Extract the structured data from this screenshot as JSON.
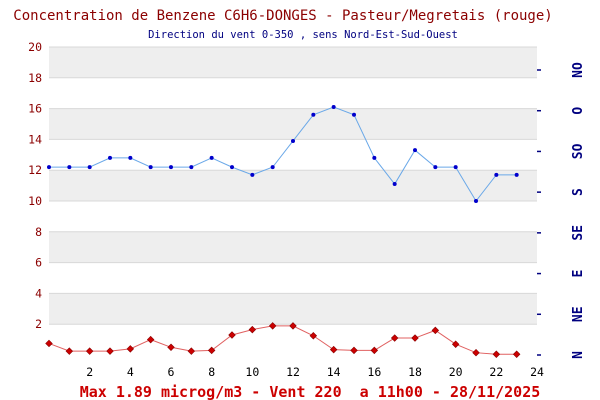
{
  "colors": {
    "title": "#8b0000",
    "left_ticks": "#8b0000",
    "right_ticks": "#000080",
    "footer": "#cc0000",
    "wind_series": "#6aa8e8",
    "wind_marker": "#0000cc",
    "benzene_series": "#e06060",
    "benzene_marker": "#cc0000",
    "band": "#eeeeee",
    "grid": "#d8d8d8"
  },
  "chart_data": {
    "type": "line",
    "title": "Concentration de Benzene C6H6-DONGES - Pasteur/Megretais (rouge)",
    "subtitle": "Direction du vent 0-350 , sens Nord-Est-Sud-Ouest",
    "footer": "Max 1.89 microg/m3 - Vent 220  a 11h00 - 28/11/2025",
    "x": [
      0,
      1,
      2,
      3,
      4,
      5,
      6,
      7,
      8,
      9,
      10,
      11,
      12,
      13,
      14,
      15,
      16,
      17,
      18,
      19,
      20,
      21,
      22,
      23
    ],
    "xlim": [
      0,
      24
    ],
    "x_ticks": [
      "2",
      "4",
      "6",
      "8",
      "10",
      "12",
      "14",
      "16",
      "18",
      "20",
      "22",
      "24"
    ],
    "ylim": [
      0,
      20
    ],
    "y_ticks": [
      "2",
      "4",
      "6",
      "8",
      "10",
      "12",
      "14",
      "16",
      "18",
      "20"
    ],
    "right_axis": {
      "labels": [
        "N",
        "NE",
        "E",
        "SE",
        "S",
        "SO",
        "O",
        "NO"
      ]
    },
    "series": [
      {
        "values": [
          12.2,
          12.2,
          12.2,
          12.8,
          12.8,
          12.2,
          12.2,
          12.2,
          12.8,
          12.2,
          11.7,
          12.2,
          13.9,
          15.6,
          16.1,
          15.6,
          12.8,
          11.1,
          13.3,
          12.2,
          12.2,
          10.0,
          11.7,
          11.7
        ]
      },
      {
        "values": [
          0.75,
          0.25,
          0.25,
          0.25,
          0.4,
          1.0,
          0.5,
          0.25,
          0.3,
          1.3,
          1.65,
          1.89,
          1.89,
          1.25,
          0.35,
          0.3,
          0.3,
          1.1,
          1.1,
          1.6,
          0.7,
          0.15,
          0.05,
          0.05
        ]
      }
    ],
    "grid": true
  }
}
